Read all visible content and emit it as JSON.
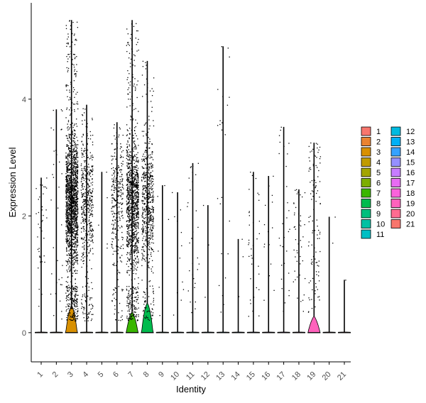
{
  "chart_data": {
    "type": "violin",
    "xlabel": "Identity",
    "ylabel": "Expression Level",
    "ylim": [
      -0.5,
      5.65
    ],
    "yticks": [
      0,
      2,
      4
    ],
    "grid": false,
    "legend_position": "right",
    "categories": [
      "1",
      "2",
      "3",
      "4",
      "5",
      "6",
      "7",
      "8",
      "9",
      "10",
      "11",
      "12",
      "13",
      "14",
      "15",
      "16",
      "17",
      "18",
      "19",
      "20",
      "21"
    ],
    "colors": [
      "#F8766D",
      "#EA8331",
      "#D89000",
      "#C09B00",
      "#A3A500",
      "#7CAE00",
      "#39B600",
      "#00BB4E",
      "#00BF7D",
      "#00C1A3",
      "#00BFC4",
      "#00BAE0",
      "#00B0F6",
      "#35A2FF",
      "#9590FF",
      "#C77CFF",
      "#E76BF3",
      "#FA62DB",
      "#FF62BC",
      "#FF6C91",
      "#F8766D"
    ],
    "series": [
      {
        "name": "1",
        "max": 2.65,
        "nonzero_points": 40,
        "violin_height": 0
      },
      {
        "name": "2",
        "max": 3.82,
        "nonzero_points": 35,
        "violin_height": 0
      },
      {
        "name": "3",
        "max": 5.35,
        "nonzero_points": 1800,
        "violin_height": 0.45
      },
      {
        "name": "4",
        "max": 3.9,
        "nonzero_points": 500,
        "violin_height": 0
      },
      {
        "name": "5",
        "max": 2.75,
        "nonzero_points": 5,
        "violin_height": 0
      },
      {
        "name": "6",
        "max": 3.6,
        "nonzero_points": 300,
        "violin_height": 0
      },
      {
        "name": "7",
        "max": 5.35,
        "nonzero_points": 1200,
        "violin_height": 0.35
      },
      {
        "name": "8",
        "max": 4.65,
        "nonzero_points": 600,
        "violin_height": 0.5
      },
      {
        "name": "9",
        "max": 2.52,
        "nonzero_points": 6,
        "violin_height": 0
      },
      {
        "name": "10",
        "max": 2.4,
        "nonzero_points": 12,
        "violin_height": 0
      },
      {
        "name": "11",
        "max": 2.9,
        "nonzero_points": 30,
        "violin_height": 0
      },
      {
        "name": "12",
        "max": 2.18,
        "nonzero_points": 3,
        "violin_height": 0
      },
      {
        "name": "13",
        "max": 4.9,
        "nonzero_points": 25,
        "violin_height": 0
      },
      {
        "name": "14",
        "max": 1.6,
        "nonzero_points": 3,
        "violin_height": 0
      },
      {
        "name": "15",
        "max": 2.75,
        "nonzero_points": 35,
        "violin_height": 0
      },
      {
        "name": "16",
        "max": 2.68,
        "nonzero_points": 15,
        "violin_height": 0
      },
      {
        "name": "17",
        "max": 3.52,
        "nonzero_points": 30,
        "violin_height": 0
      },
      {
        "name": "18",
        "max": 2.45,
        "nonzero_points": 45,
        "violin_height": 0
      },
      {
        "name": "19",
        "max": 3.25,
        "nonzero_points": 110,
        "violin_height": 0.28
      },
      {
        "name": "20",
        "max": 1.98,
        "nonzero_points": 2,
        "violin_height": 0
      },
      {
        "name": "21",
        "max": 0.9,
        "nonzero_points": 1,
        "violin_height": 0
      }
    ]
  }
}
